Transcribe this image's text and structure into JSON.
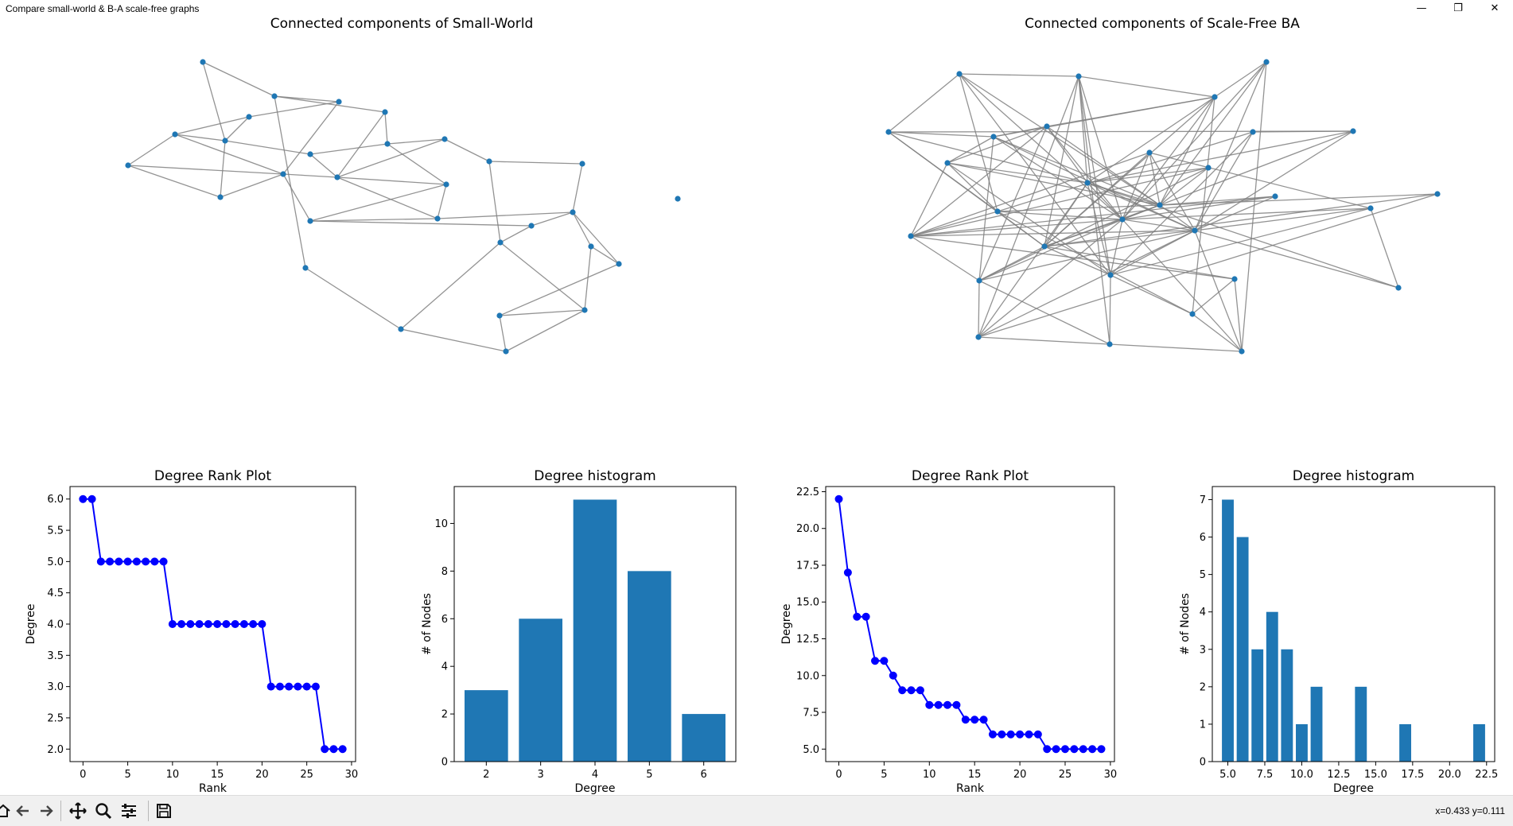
{
  "window": {
    "title": "Compare small-world & B-A scale-free graphs",
    "minimize_label": "—",
    "restore_label": "❐",
    "close_label": "✕"
  },
  "toolbar": {
    "buttons": [
      "home-icon",
      "back-icon",
      "forward-icon",
      "pan-icon",
      "zoom-icon",
      "configure-subplots-icon",
      "save-icon"
    ],
    "coords": "x=0.433 y=0.111"
  },
  "colors": {
    "node": "#1f77b4",
    "edge": "#808080",
    "rank_line": "#0000ff",
    "bar": "#1f77b4"
  },
  "chart_data": [
    {
      "type": "network",
      "title": "Connected components of Small-World",
      "nodes": 30,
      "node_color": "#1f77b4",
      "edge_color": "#808080"
    },
    {
      "type": "network",
      "title": "Connected components of Scale-Free BA",
      "nodes": 30,
      "node_color": "#1f77b4",
      "edge_color": "#808080"
    },
    {
      "type": "line",
      "title": "Degree Rank Plot",
      "xlabel": "Rank",
      "ylabel": "Degree",
      "x": [
        0,
        1,
        2,
        3,
        4,
        5,
        6,
        7,
        8,
        9,
        10,
        11,
        12,
        13,
        14,
        15,
        16,
        17,
        18,
        19,
        20,
        21,
        22,
        23,
        24,
        25,
        26,
        27,
        28,
        29
      ],
      "y": [
        6,
        6,
        5,
        5,
        5,
        5,
        5,
        5,
        5,
        5,
        4,
        4,
        4,
        4,
        4,
        4,
        4,
        4,
        4,
        4,
        4,
        3,
        3,
        3,
        3,
        3,
        3,
        2,
        2,
        2
      ],
      "xlim": [
        -1.45,
        30.45
      ],
      "ylim": [
        1.8,
        6.2
      ],
      "xticks": [
        0,
        5,
        10,
        15,
        20,
        25,
        30
      ],
      "yticks": [
        2.0,
        2.5,
        3.0,
        3.5,
        4.0,
        4.5,
        5.0,
        5.5,
        6.0
      ],
      "xtick_labels": [
        "0",
        "5",
        "10",
        "15",
        "20",
        "25",
        "30"
      ],
      "ytick_labels": [
        "2.0",
        "2.5",
        "3.0",
        "3.5",
        "4.0",
        "4.5",
        "5.0",
        "5.5",
        "6.0"
      ],
      "marker": "o",
      "color": "#0000ff"
    },
    {
      "type": "bar",
      "title": "Degree histogram",
      "xlabel": "Degree",
      "ylabel": "# of Nodes",
      "categories": [
        2,
        3,
        4,
        5,
        6
      ],
      "values": [
        3,
        6,
        11,
        8,
        2
      ],
      "bar_width": 0.8,
      "xlim": [
        1.41,
        6.59
      ],
      "ylim": [
        0,
        11.55
      ],
      "xticks": [
        2,
        3,
        4,
        5,
        6
      ],
      "yticks": [
        0,
        2,
        4,
        6,
        8,
        10
      ],
      "xtick_labels": [
        "2",
        "3",
        "4",
        "5",
        "6"
      ],
      "ytick_labels": [
        "0",
        "2",
        "4",
        "6",
        "8",
        "10"
      ],
      "color": "#1f77b4"
    },
    {
      "type": "line",
      "title": "Degree Rank Plot",
      "xlabel": "Rank",
      "ylabel": "Degree",
      "x": [
        0,
        1,
        2,
        3,
        4,
        5,
        6,
        7,
        8,
        9,
        10,
        11,
        12,
        13,
        14,
        15,
        16,
        17,
        18,
        19,
        20,
        21,
        22,
        23,
        24,
        25,
        26,
        27,
        28,
        29
      ],
      "y": [
        22,
        17,
        14,
        14,
        11,
        11,
        10,
        9,
        9,
        9,
        8,
        8,
        8,
        8,
        7,
        7,
        7,
        6,
        6,
        6,
        6,
        6,
        6,
        5,
        5,
        5,
        5,
        5,
        5,
        5
      ],
      "xlim": [
        -1.45,
        30.45
      ],
      "ylim": [
        4.15,
        22.85
      ],
      "xticks": [
        0,
        5,
        10,
        15,
        20,
        25,
        30
      ],
      "yticks": [
        5.0,
        7.5,
        10.0,
        12.5,
        15.0,
        17.5,
        20.0,
        22.5
      ],
      "xtick_labels": [
        "0",
        "5",
        "10",
        "15",
        "20",
        "25",
        "30"
      ],
      "ytick_labels": [
        "5.0",
        "7.5",
        "10.0",
        "12.5",
        "15.0",
        "17.5",
        "20.0",
        "22.5"
      ],
      "marker": "o",
      "color": "#0000ff"
    },
    {
      "type": "bar",
      "title": "Degree histogram",
      "xlabel": "Degree",
      "ylabel": "# of Nodes",
      "categories": [
        5,
        6,
        7,
        8,
        9,
        10,
        11,
        14,
        17,
        22
      ],
      "values": [
        7,
        6,
        3,
        4,
        3,
        1,
        2,
        2,
        1,
        1
      ],
      "bar_width": 0.8,
      "xlim": [
        3.95,
        23.05
      ],
      "ylim": [
        0,
        7.35
      ],
      "xticks": [
        5.0,
        7.5,
        10.0,
        12.5,
        15.0,
        17.5,
        20.0,
        22.5
      ],
      "yticks": [
        0,
        1,
        2,
        3,
        4,
        5,
        6,
        7
      ],
      "xtick_labels": [
        "5.0",
        "7.5",
        "10.0",
        "12.5",
        "15.0",
        "17.5",
        "20.0",
        "22.5"
      ],
      "ytick_labels": [
        "0",
        "1",
        "2",
        "3",
        "4",
        "5",
        "6",
        "7"
      ],
      "color": "#1f77b4"
    }
  ]
}
